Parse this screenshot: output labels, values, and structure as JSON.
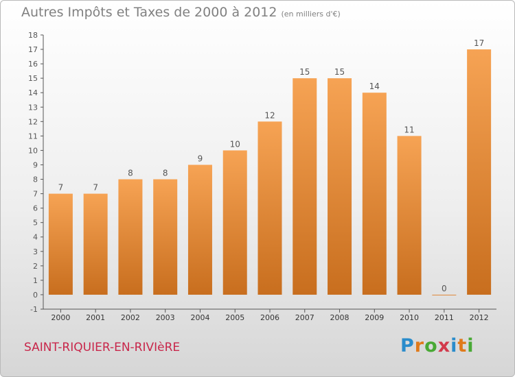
{
  "title": "Autres Impôts et Taxes de 2000 à 2012",
  "subtitle": "(en milliers d'€)",
  "commune": "SAINT-RIQUIER-EN-RIVIèRE",
  "logo": {
    "letters": [
      "P",
      "r",
      "o",
      "x",
      "i",
      "t",
      "i"
    ],
    "colors": [
      "#2a8ccb",
      "#e07a1a",
      "#49a935",
      "#d23a4c",
      "#2a8ccb",
      "#e07a1a",
      "#49a935"
    ]
  },
  "colors": {
    "bar_top": "#f6a354",
    "bar_bottom": "#c86e1e",
    "axis": "#555555",
    "text": "#555555",
    "title": "#808080",
    "commune": "#c8264a"
  },
  "chart_data": {
    "type": "bar",
    "categories": [
      "2000",
      "2001",
      "2002",
      "2003",
      "2004",
      "2005",
      "2006",
      "2007",
      "2008",
      "2009",
      "2010",
      "2011",
      "2012"
    ],
    "values": [
      7,
      7,
      8,
      8,
      9,
      10,
      12,
      15,
      15,
      14,
      11,
      0,
      17
    ],
    "ylim": [
      -1,
      18
    ],
    "yticks": [
      -1,
      0,
      1,
      2,
      3,
      4,
      5,
      6,
      7,
      8,
      9,
      10,
      11,
      12,
      13,
      14,
      15,
      16,
      17,
      18
    ],
    "grid": false,
    "legend": "none"
  }
}
